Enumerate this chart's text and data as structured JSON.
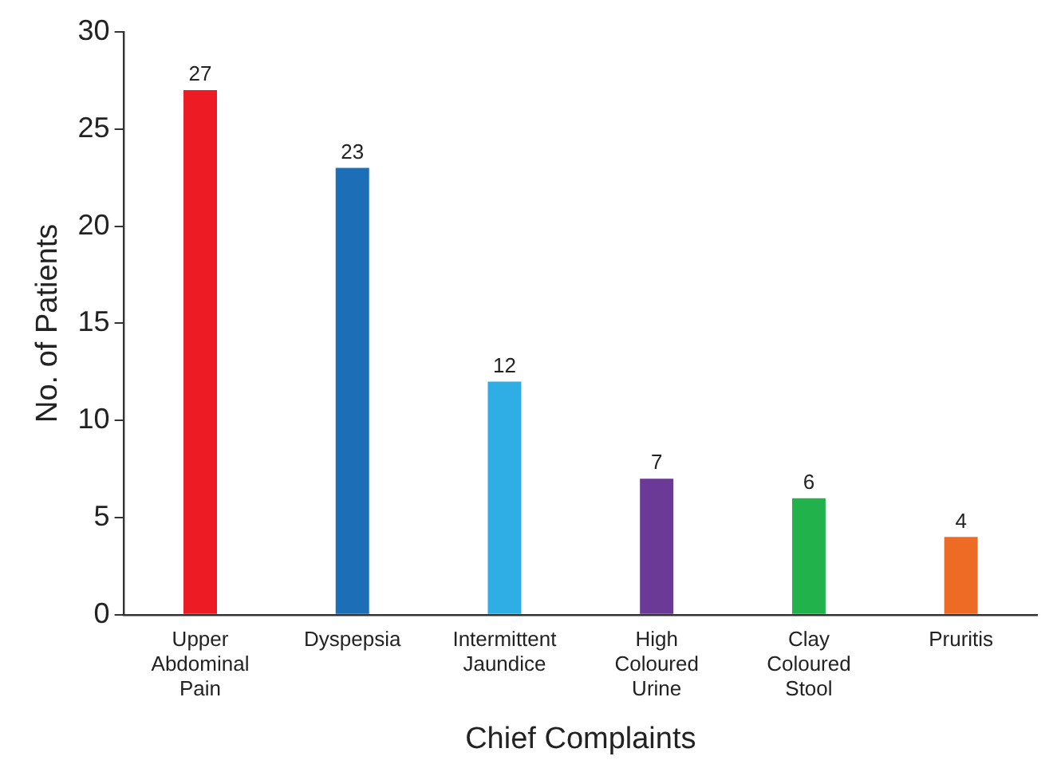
{
  "chart_data": {
    "type": "bar",
    "xlabel": "Chief Complaints",
    "ylabel": "No. of Patients",
    "categories": [
      "Upper Abdominal Pain",
      "Dyspepsia",
      "Intermittent Jaundice",
      "High Coloured Urine",
      "Clay Coloured Stool",
      "Pruritis"
    ],
    "values": [
      27,
      23,
      12,
      7,
      6,
      4
    ],
    "colors": [
      "#ed1c24",
      "#1c6fb6",
      "#2eaee4",
      "#6b3996",
      "#21b24b",
      "#ee6b25"
    ],
    "ylim": [
      0,
      30
    ],
    "yticks": [
      0,
      5,
      10,
      15,
      20,
      25,
      30
    ],
    "grid": false,
    "legend": false,
    "data_labels": true
  }
}
